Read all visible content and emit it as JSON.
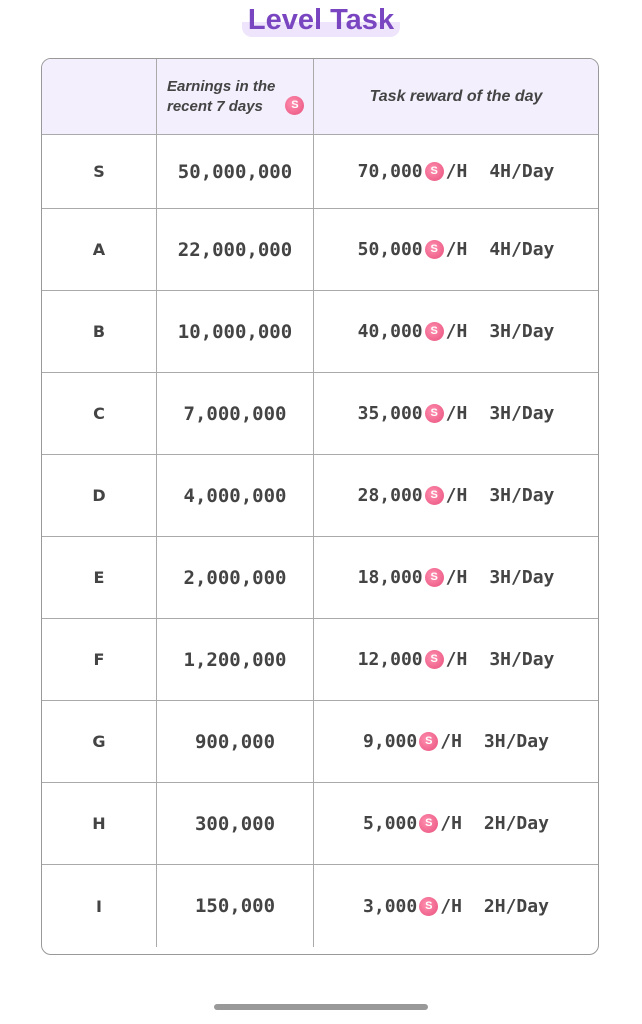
{
  "title": "Level Task",
  "header": {
    "earnings_line1": "Earnings in the",
    "earnings_line2": "recent 7 days",
    "reward": "Task reward of the day",
    "coin_icon": "coin-icon",
    "coin_glyph": "S",
    "accent": "#7a45c0",
    "coin_color": "#e8507c"
  },
  "rows": [
    {
      "level": "S",
      "earnings": "50,000,000",
      "reward": "70,000",
      "unit": "/H",
      "hours": "4H/Day"
    },
    {
      "level": "A",
      "earnings": "22,000,000",
      "reward": "50,000",
      "unit": "/H",
      "hours": "4H/Day"
    },
    {
      "level": "B",
      "earnings": "10,000,000",
      "reward": "40,000",
      "unit": "/H",
      "hours": "3H/Day"
    },
    {
      "level": "C",
      "earnings": "7,000,000",
      "reward": "35,000",
      "unit": "/H",
      "hours": "3H/Day"
    },
    {
      "level": "D",
      "earnings": "4,000,000",
      "reward": "28,000",
      "unit": "/H",
      "hours": "3H/Day"
    },
    {
      "level": "E",
      "earnings": "2,000,000",
      "reward": "18,000",
      "unit": "/H",
      "hours": "3H/Day"
    },
    {
      "level": "F",
      "earnings": "1,200,000",
      "reward": "12,000",
      "unit": "/H",
      "hours": "3H/Day"
    },
    {
      "level": "G",
      "earnings": "900,000",
      "reward": "9,000",
      "unit": "/H",
      "hours": "3H/Day"
    },
    {
      "level": "H",
      "earnings": "300,000",
      "reward": "5,000",
      "unit": "/H",
      "hours": "2H/Day"
    },
    {
      "level": "I",
      "earnings": "150,000",
      "reward": "3,000",
      "unit": "/H",
      "hours": "2H/Day"
    }
  ]
}
